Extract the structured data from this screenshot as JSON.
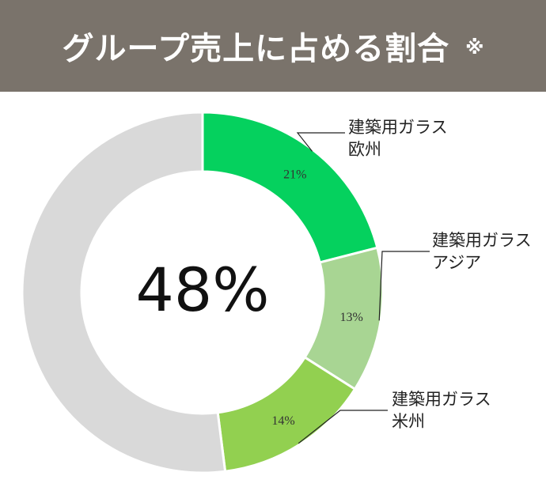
{
  "header": {
    "title": "グループ売上に占める割合",
    "note_mark": "※"
  },
  "chart_data": {
    "type": "pie",
    "donut": true,
    "center_label": "48%",
    "series": [
      {
        "name_line1": "建築用ガラス",
        "name_line2": "欧州",
        "value": 21,
        "label": "21%",
        "color": "#05d15e"
      },
      {
        "name_line1": "建築用ガラス",
        "name_line2": "アジア",
        "value": 13,
        "label": "13%",
        "color": "#a8d593"
      },
      {
        "name_line1": "建築用ガラス",
        "name_line2": "米州",
        "value": 14,
        "label": "14%",
        "color": "#92d050"
      },
      {
        "value": 52,
        "color": "#d9d9d9"
      }
    ],
    "start_angle_deg": 0,
    "direction": "clockwise"
  },
  "colors": {
    "header_bg": "#7a736b",
    "header_text": "#ffffff",
    "leader_line": "#222222"
  }
}
